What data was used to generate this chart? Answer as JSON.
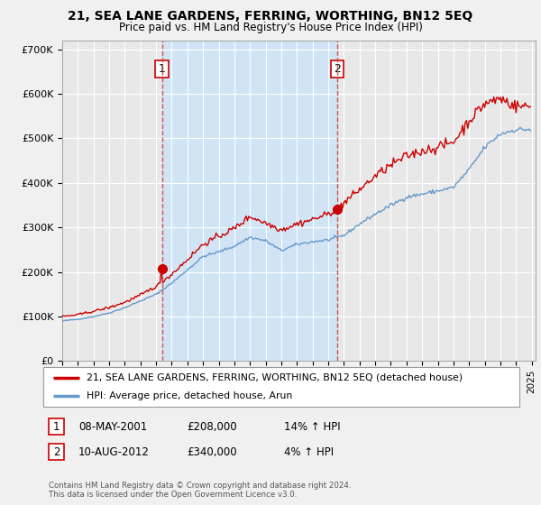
{
  "title": "21, SEA LANE GARDENS, FERRING, WORTHING, BN12 5EQ",
  "subtitle": "Price paid vs. HM Land Registry's House Price Index (HPI)",
  "ylim": [
    0,
    720000
  ],
  "yticks": [
    0,
    100000,
    200000,
    300000,
    400000,
    500000,
    600000,
    700000
  ],
  "ytick_labels": [
    "£0",
    "£100K",
    "£200K",
    "£300K",
    "£400K",
    "£500K",
    "£600K",
    "£700K"
  ],
  "background_color": "#f0f0f0",
  "plot_bg_color": "#e8e8e8",
  "grid_color": "#ffffff",
  "sale1_x": 2001.37,
  "sale1_y": 208000,
  "sale2_x": 2012.58,
  "sale2_y": 340000,
  "property_color": "#cc0000",
  "hpi_color": "#6699cc",
  "hpi_fill_color": "#d0e4f5",
  "legend_property": "21, SEA LANE GARDENS, FERRING, WORTHING, BN12 5EQ (detached house)",
  "legend_hpi": "HPI: Average price, detached house, Arun",
  "note1_date": "08-MAY-2001",
  "note1_price": "£208,000",
  "note1_hpi": "14% ↑ HPI",
  "note2_date": "10-AUG-2012",
  "note2_price": "£340,000",
  "note2_hpi": "4% ↑ HPI",
  "copyright": "Contains HM Land Registry data © Crown copyright and database right 2024.\nThis data is licensed under the Open Government Licence v3.0.",
  "xlim": [
    1995.0,
    2025.25
  ],
  "xticks": [
    1995,
    1996,
    1997,
    1998,
    1999,
    2000,
    2001,
    2002,
    2003,
    2004,
    2005,
    2006,
    2007,
    2008,
    2009,
    2010,
    2011,
    2012,
    2013,
    2014,
    2015,
    2016,
    2017,
    2018,
    2019,
    2020,
    2021,
    2022,
    2023,
    2024,
    2025
  ]
}
